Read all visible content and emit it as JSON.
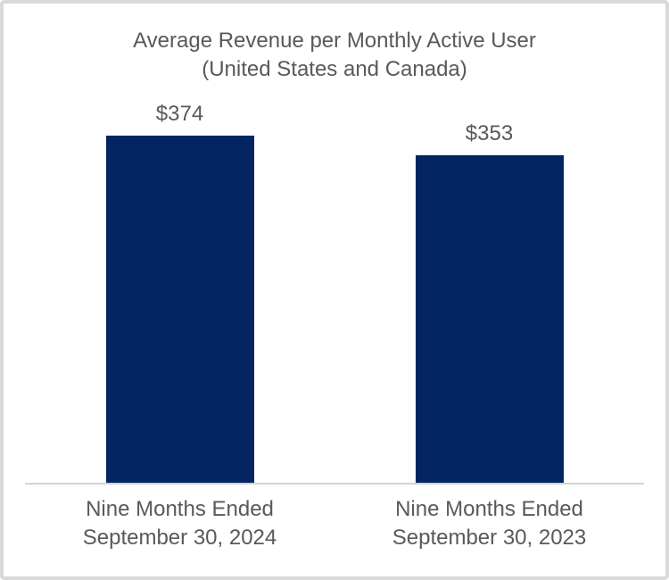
{
  "chart_data": {
    "type": "bar",
    "title": "Average Revenue per Monthly Active User\n(United States and Canada)",
    "categories": [
      "Nine Months Ended\nSeptember 30, 2024",
      "Nine Months Ended\nSeptember 30, 2023"
    ],
    "values": [
      374,
      353
    ],
    "value_labels": [
      "$374",
      "$353"
    ],
    "xlabel": "",
    "ylabel": "",
    "ylim": [
      0,
      374
    ],
    "grid": false,
    "legend": false,
    "colors": {
      "bar": "#032663",
      "text": "#595959",
      "axis_line": "#d2d2d2",
      "frame_border": "#d9d9d9",
      "background": "#ffffff"
    }
  }
}
